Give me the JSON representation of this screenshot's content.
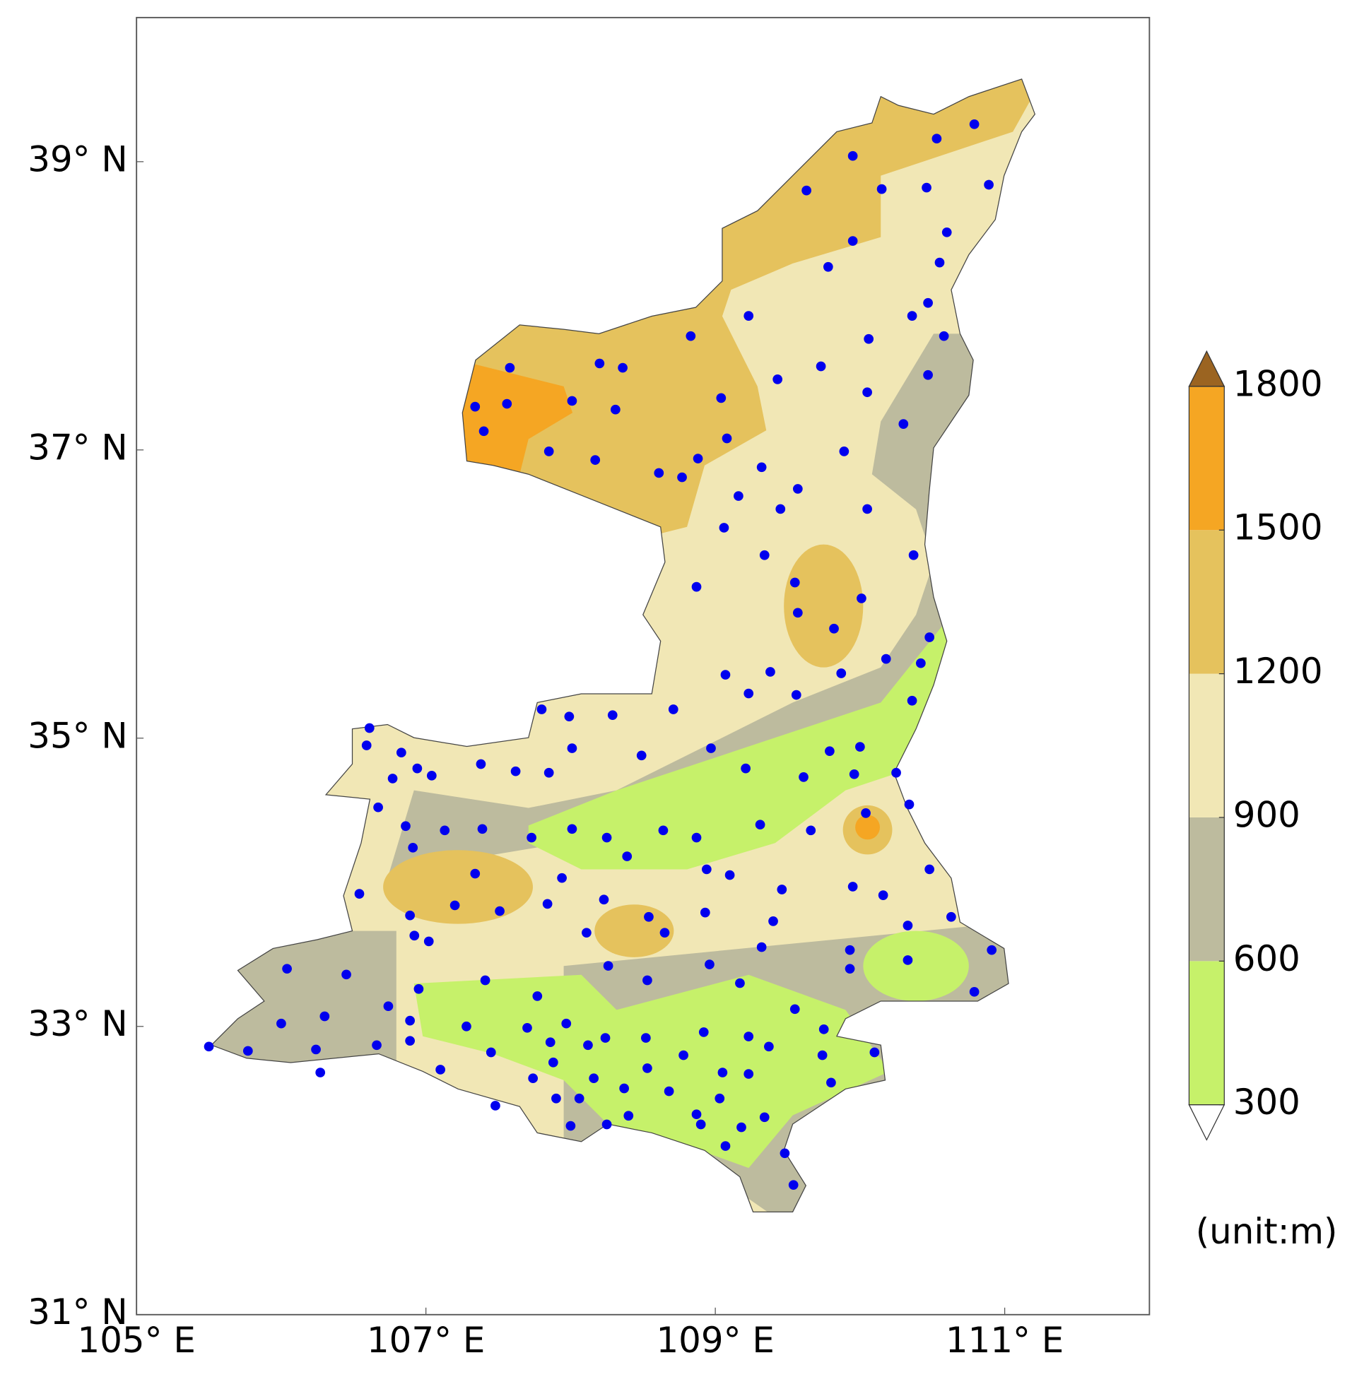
{
  "chart_data": {
    "type": "station-map",
    "xlim": [
      105,
      112
    ],
    "ylim": [
      31,
      40
    ],
    "xticks": [
      {
        "value": 105,
        "label": "105° E"
      },
      {
        "value": 107,
        "label": "107° E"
      },
      {
        "value": 109,
        "label": "109° E"
      },
      {
        "value": 111,
        "label": "111° E"
      }
    ],
    "yticks": [
      {
        "value": 31,
        "label": "31° N"
      },
      {
        "value": 33,
        "label": "33° N"
      },
      {
        "value": 35,
        "label": "35° N"
      },
      {
        "value": 37,
        "label": "37° N"
      },
      {
        "value": 39,
        "label": "39° N"
      }
    ],
    "station_color": "#0000ee",
    "x": [
      110.53,
      110.79,
      109.95,
      110.15,
      109.63,
      110.46,
      110.89,
      109.95,
      110.6,
      109.78,
      110.55,
      110.47,
      109.23,
      108.83,
      110.36,
      110.58,
      110.06,
      107.58,
      108.2,
      108.36,
      107.34,
      107.56,
      107.4,
      108.01,
      108.31,
      107.85,
      108.17,
      108.61,
      108.77,
      108.88,
      109.04,
      109.43,
      109.73,
      110.05,
      110.47,
      110.3,
      109.08,
      109.89,
      109.32,
      109.57,
      109.16,
      110.05,
      109.45,
      109.06,
      109.34,
      110.37,
      108.87,
      109.55,
      110.01,
      109.57,
      109.82,
      110.48,
      109.07,
      109.38,
      109.87,
      110.18,
      110.42,
      110.36,
      109.56,
      109.23,
      108.71,
      108.29,
      107.8,
      107.99,
      106.61,
      106.59,
      106.83,
      106.77,
      107.04,
      106.94,
      107.38,
      107.62,
      107.85,
      108.01,
      108.49,
      108.97,
      109.21,
      109.61,
      109.96,
      110.25,
      109.79,
      110.0,
      106.67,
      106.86,
      107.13,
      107.39,
      107.73,
      108.01,
      108.25,
      108.64,
      108.87,
      109.31,
      109.66,
      110.04,
      110.34,
      106.91,
      107.34,
      107.94,
      108.39,
      108.94,
      109.1,
      109.46,
      109.95,
      110.16,
      110.48,
      106.54,
      106.89,
      107.2,
      107.51,
      107.84,
      108.23,
      108.54,
      108.93,
      109.4,
      110.33,
      110.63,
      106.92,
      107.02,
      108.11,
      108.65,
      109.32,
      109.93,
      110.91,
      106.04,
      106.45,
      106.74,
      106.95,
      107.41,
      107.77,
      108.26,
      108.53,
      108.96,
      109.17,
      109.93,
      110.33,
      110.79,
      106.0,
      106.3,
      106.89,
      107.28,
      107.7,
      107.97,
      108.24,
      108.52,
      108.92,
      109.23,
      109.55,
      109.75,
      105.5,
      105.77,
      106.24,
      106.66,
      106.89,
      107.45,
      107.86,
      108.12,
      108.78,
      109.37,
      109.74,
      110.1,
      106.27,
      107.1,
      107.74,
      107.88,
      108.16,
      108.53,
      109.05,
      109.23,
      109.8,
      107.48,
      107.9,
      108.06,
      108.37,
      108.68,
      109.03,
      108.4,
      108.87,
      109.34,
      108.0,
      108.25,
      108.9,
      109.18,
      109.07,
      109.48,
      109.54
    ],
    "y": [
      39.16,
      39.26,
      39.04,
      38.81,
      38.8,
      38.82,
      38.84,
      38.45,
      38.51,
      38.27,
      38.3,
      38.02,
      37.93,
      37.79,
      37.93,
      37.79,
      37.77,
      37.57,
      37.6,
      37.57,
      37.3,
      37.32,
      37.13,
      37.34,
      37.28,
      36.99,
      36.93,
      36.84,
      36.81,
      36.94,
      37.36,
      37.49,
      37.58,
      37.4,
      37.52,
      37.18,
      37.08,
      36.99,
      36.88,
      36.73,
      36.68,
      36.59,
      36.59,
      36.46,
      36.27,
      36.27,
      36.05,
      36.08,
      35.97,
      35.87,
      35.76,
      35.7,
      35.44,
      35.46,
      35.45,
      35.55,
      35.52,
      35.26,
      35.3,
      35.31,
      35.2,
      35.16,
      35.2,
      35.15,
      35.07,
      34.95,
      34.9,
      34.72,
      34.74,
      34.79,
      34.82,
      34.77,
      34.76,
      34.93,
      34.88,
      34.93,
      34.79,
      34.73,
      34.75,
      34.76,
      34.91,
      34.94,
      34.52,
      34.39,
      34.36,
      34.37,
      34.31,
      34.37,
      34.31,
      34.36,
      34.31,
      34.4,
      34.36,
      34.48,
      34.54,
      34.24,
      34.06,
      34.03,
      34.18,
      34.09,
      34.05,
      33.95,
      33.97,
      33.91,
      34.09,
      33.92,
      33.77,
      33.84,
      33.8,
      33.85,
      33.88,
      33.76,
      33.79,
      33.73,
      33.7,
      33.76,
      33.63,
      33.59,
      33.65,
      33.65,
      33.55,
      33.53,
      33.53,
      33.4,
      33.36,
      33.14,
      33.26,
      33.32,
      33.21,
      33.42,
      33.32,
      33.43,
      33.3,
      33.4,
      33.46,
      33.24,
      33.02,
      33.07,
      33.04,
      33.0,
      32.99,
      33.02,
      32.92,
      32.92,
      32.96,
      32.93,
      33.12,
      32.98,
      32.86,
      32.83,
      32.84,
      32.87,
      32.9,
      32.82,
      32.89,
      32.87,
      32.8,
      32.86,
      32.8,
      32.82,
      32.68,
      32.7,
      32.64,
      32.75,
      32.64,
      32.71,
      32.68,
      32.67,
      32.61,
      32.45,
      32.5,
      32.5,
      32.57,
      32.55,
      32.5,
      32.38,
      32.39,
      32.37,
      32.31,
      32.32,
      32.32,
      32.3,
      32.17,
      32.12,
      31.9
    ],
    "colorbar": {
      "levels": [
        300,
        600,
        900,
        1200,
        1500,
        1800
      ],
      "colors": [
        "#c6f16a",
        "#bdbb9e",
        "#f1e7b5",
        "#e5c25d",
        "#f5a623"
      ],
      "over_color": "#9b6421",
      "under_color": "#ffffff",
      "label": "(unit:m)"
    }
  }
}
